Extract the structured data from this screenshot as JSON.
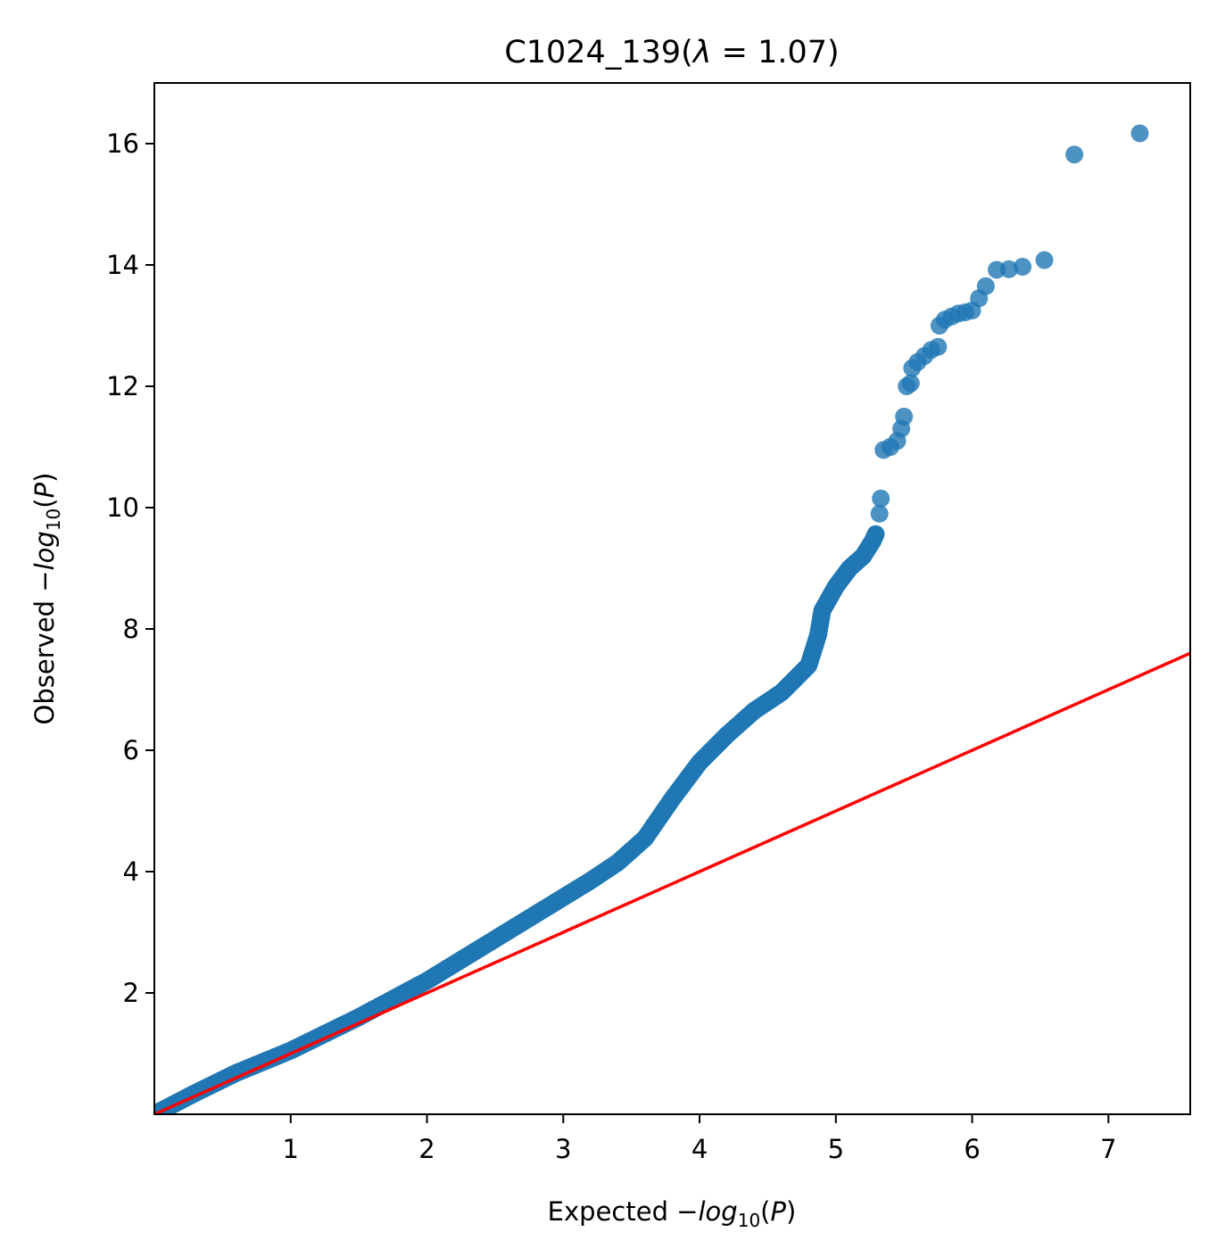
{
  "chart_data": {
    "type": "scatter",
    "title": {
      "prefix": "C1024_139(",
      "symbol": "λ",
      "middle": " = ",
      "value": "1.07",
      "suffix": ")"
    },
    "xlabel": {
      "prefix": "Expected −",
      "func": "log",
      "sub": "10",
      "arg_open": "(",
      "arg": "P",
      "arg_close": ")"
    },
    "ylabel": {
      "prefix": "Observed −",
      "func": "log",
      "sub": "10",
      "arg_open": "(",
      "arg": "P",
      "arg_close": ")"
    },
    "xlim": [
      0,
      7.6
    ],
    "ylim": [
      0,
      17
    ],
    "xticks": [
      1,
      2,
      3,
      4,
      5,
      6,
      7
    ],
    "yticks": [
      2,
      4,
      6,
      8,
      10,
      12,
      14,
      16
    ],
    "grid": false,
    "legend": "none",
    "colors": {
      "points": "#1f77b4",
      "reference_line": "#ff0000"
    },
    "reference_line": {
      "x": [
        0,
        7.6
      ],
      "y": [
        0,
        7.6
      ]
    },
    "series": [
      {
        "curve": [
          [
            0.0,
            0.0
          ],
          [
            0.3,
            0.35
          ],
          [
            0.6,
            0.68
          ],
          [
            1.0,
            1.05
          ],
          [
            1.5,
            1.6
          ],
          [
            2.0,
            2.2
          ],
          [
            2.4,
            2.75
          ],
          [
            2.8,
            3.3
          ],
          [
            3.2,
            3.85
          ],
          [
            3.4,
            4.15
          ],
          [
            3.6,
            4.55
          ],
          [
            3.8,
            5.2
          ],
          [
            4.0,
            5.8
          ],
          [
            4.2,
            6.25
          ],
          [
            4.4,
            6.65
          ],
          [
            4.6,
            6.95
          ],
          [
            4.8,
            7.4
          ],
          [
            4.87,
            7.9
          ],
          [
            4.9,
            8.3
          ],
          [
            5.0,
            8.7
          ],
          [
            5.1,
            9.0
          ],
          [
            5.2,
            9.2
          ],
          [
            5.27,
            9.45
          ],
          [
            5.3,
            9.6
          ]
        ],
        "points": [
          [
            5.32,
            9.9
          ],
          [
            5.33,
            10.15
          ],
          [
            5.35,
            10.95
          ],
          [
            5.4,
            11.0
          ],
          [
            5.45,
            11.1
          ],
          [
            5.48,
            11.3
          ],
          [
            5.5,
            11.5
          ],
          [
            5.52,
            12.0
          ],
          [
            5.55,
            12.05
          ],
          [
            5.56,
            12.3
          ],
          [
            5.6,
            12.4
          ],
          [
            5.65,
            12.5
          ],
          [
            5.7,
            12.6
          ],
          [
            5.75,
            12.65
          ],
          [
            5.76,
            13.0
          ],
          [
            5.8,
            13.1
          ],
          [
            5.85,
            13.15
          ],
          [
            5.9,
            13.2
          ],
          [
            5.95,
            13.22
          ],
          [
            6.0,
            13.25
          ],
          [
            6.05,
            13.45
          ],
          [
            6.1,
            13.65
          ],
          [
            6.18,
            13.92
          ],
          [
            6.27,
            13.93
          ],
          [
            6.37,
            13.97
          ],
          [
            6.53,
            14.08
          ],
          [
            6.75,
            15.82
          ],
          [
            7.23,
            16.17
          ]
        ]
      }
    ]
  }
}
